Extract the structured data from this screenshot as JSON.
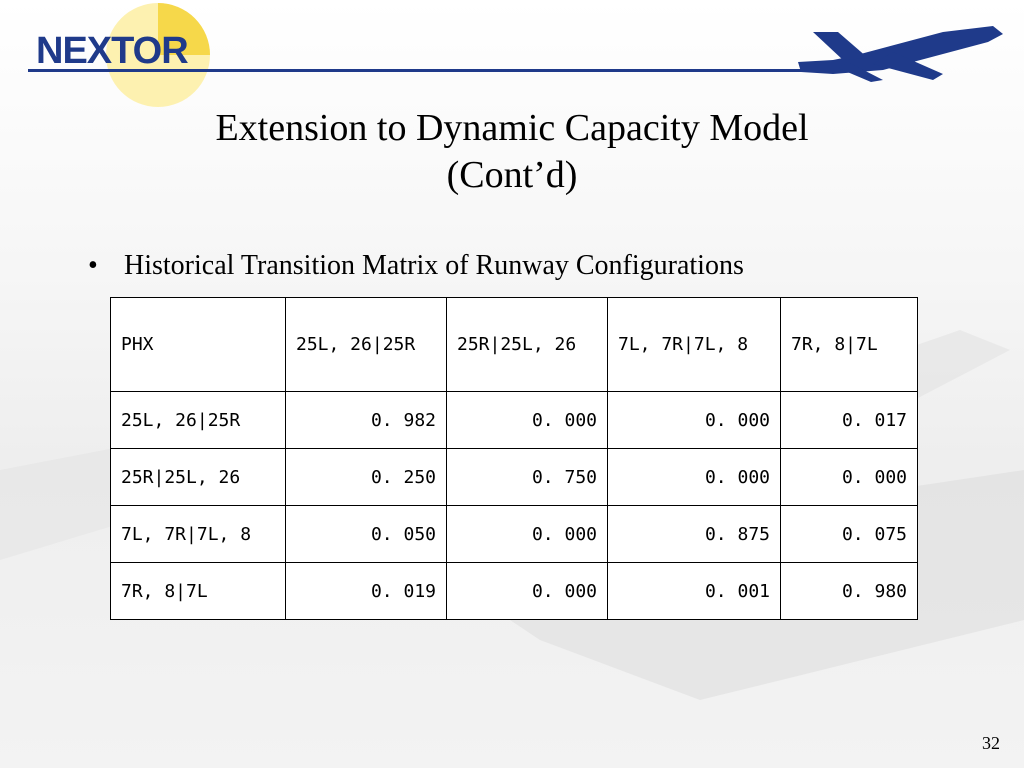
{
  "logo": {
    "text": "NEXTOR"
  },
  "slide": {
    "title_line1": "Extension to Dynamic Capacity Model",
    "title_line2": "(Cont’d)",
    "bullet": "Historical Transition Matrix of Runway Configurations",
    "page_number": "32"
  },
  "table": {
    "headers": [
      "PHX",
      "25L, 26|25R",
      "25R|25L, 26",
      "7L, 7R|7L, 8",
      "7R, 8|7L"
    ],
    "rows": [
      {
        "label": "25L, 26|25R",
        "values": [
          "0. 982",
          "0. 000",
          "0. 000",
          "0. 017"
        ]
      },
      {
        "label": "25R|25L, 26",
        "values": [
          "0. 250",
          "0. 750",
          "0. 000",
          "0. 000"
        ]
      },
      {
        "label": "7L, 7R|7L, 8",
        "values": [
          "0. 050",
          "0. 000",
          "0. 875",
          "0. 075"
        ]
      },
      {
        "label": "7R, 8|7L",
        "values": [
          "0. 019",
          "0. 000",
          "0. 001",
          "0. 980"
        ]
      }
    ]
  }
}
